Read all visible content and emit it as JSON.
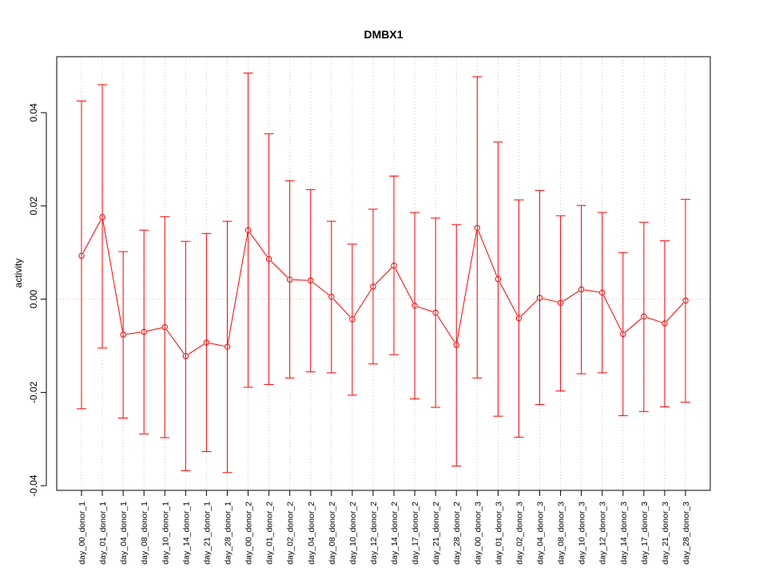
{
  "chart_data": {
    "type": "line",
    "title": "DMBX1",
    "xlabel": "",
    "ylabel": "activity",
    "ylim": [
      -0.041,
      0.052
    ],
    "yticks": [
      -0.04,
      -0.02,
      0.0,
      0.02,
      0.04
    ],
    "ytick_labels": [
      "-0.04",
      "-0.02",
      "0.00",
      "0.02",
      "0.04"
    ],
    "grid": true,
    "series_color": "#ff0000",
    "grid_color": "#c8c8c8",
    "categories": [
      "day_00_donor_1",
      "day_01_donor_1",
      "day_04_donor_1",
      "day_08_donor_1",
      "day_10_donor_1",
      "day_14_donor_1",
      "day_21_donor_1",
      "day_28_donor_1",
      "day_00_donor_2",
      "day_01_donor_2",
      "day_02_donor_2",
      "day_04_donor_2",
      "day_08_donor_2",
      "day_10_donor_2",
      "day_12_donor_2",
      "day_14_donor_2",
      "day_17_donor_2",
      "day_21_donor_2",
      "day_28_donor_2",
      "day_00_donor_3",
      "day_01_donor_3",
      "day_02_donor_3",
      "day_04_donor_3",
      "day_08_donor_3",
      "day_10_donor_3",
      "day_12_donor_3",
      "day_14_donor_3",
      "day_17_donor_3",
      "day_21_donor_3",
      "day_28_donor_3"
    ],
    "values": [
      0.0093,
      0.0176,
      -0.0076,
      -0.007,
      -0.006,
      -0.0122,
      -0.0093,
      -0.0102,
      0.0148,
      0.0086,
      0.0042,
      0.004,
      0.0005,
      -0.0043,
      0.0027,
      0.0072,
      -0.0014,
      -0.0029,
      -0.0098,
      0.0153,
      0.0043,
      -0.0041,
      0.0003,
      -0.0008,
      0.0021,
      0.0014,
      -0.0075,
      -0.0037,
      -0.0052,
      -0.0003
    ],
    "upper": [
      0.0425,
      0.046,
      0.0102,
      0.0148,
      0.0177,
      0.0124,
      0.0141,
      0.0167,
      0.0485,
      0.0355,
      0.0254,
      0.0235,
      0.0167,
      0.0118,
      0.0193,
      0.0264,
      0.0186,
      0.0174,
      0.016,
      0.0477,
      0.0337,
      0.0213,
      0.0233,
      0.0179,
      0.0201,
      0.0186,
      0.01,
      0.0165,
      0.0125,
      0.0214
    ],
    "lower": [
      -0.0235,
      -0.0105,
      -0.0255,
      -0.0289,
      -0.0297,
      -0.0368,
      -0.0327,
      -0.0372,
      -0.0189,
      -0.0183,
      -0.0169,
      -0.0156,
      -0.0158,
      -0.0206,
      -0.0139,
      -0.0119,
      -0.0214,
      -0.0232,
      -0.0358,
      -0.0169,
      -0.0251,
      -0.0296,
      -0.0226,
      -0.0197,
      -0.016,
      -0.0158,
      -0.025,
      -0.0241,
      -0.0231,
      -0.0221
    ]
  }
}
